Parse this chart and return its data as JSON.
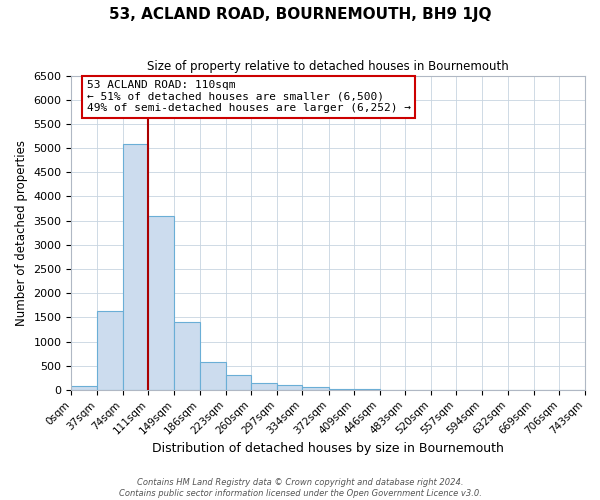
{
  "title": "53, ACLAND ROAD, BOURNEMOUTH, BH9 1JQ",
  "subtitle": "Size of property relative to detached houses in Bournemouth",
  "xlabel": "Distribution of detached houses by size in Bournemouth",
  "ylabel": "Number of detached properties",
  "bin_edges": [
    0,
    37,
    74,
    111,
    149,
    186,
    223,
    260,
    297,
    334,
    372,
    409,
    446,
    483,
    520,
    557,
    594,
    632,
    669,
    706,
    743
  ],
  "bin_counts": [
    75,
    1625,
    5075,
    3600,
    1400,
    575,
    300,
    150,
    100,
    50,
    25,
    10,
    0,
    0,
    0,
    0,
    0,
    0,
    0,
    0
  ],
  "bar_color": "#ccdcee",
  "bar_edgecolor": "#6aaed6",
  "vline_x": 111,
  "vline_color": "#aa0000",
  "annotation_title": "53 ACLAND ROAD: 110sqm",
  "annotation_line1": "← 51% of detached houses are smaller (6,500)",
  "annotation_line2": "49% of semi-detached houses are larger (6,252) →",
  "annotation_box_edgecolor": "#cc0000",
  "ylim": [
    0,
    6500
  ],
  "yticks": [
    0,
    500,
    1000,
    1500,
    2000,
    2500,
    3000,
    3500,
    4000,
    4500,
    5000,
    5500,
    6000,
    6500
  ],
  "footer_line1": "Contains HM Land Registry data © Crown copyright and database right 2024.",
  "footer_line2": "Contains public sector information licensed under the Open Government Licence v3.0.",
  "tick_labels": [
    "0sqm",
    "37sqm",
    "74sqm",
    "111sqm",
    "149sqm",
    "186sqm",
    "223sqm",
    "260sqm",
    "297sqm",
    "334sqm",
    "372sqm",
    "409sqm",
    "446sqm",
    "483sqm",
    "520sqm",
    "557sqm",
    "594sqm",
    "632sqm",
    "669sqm",
    "706sqm",
    "743sqm"
  ]
}
